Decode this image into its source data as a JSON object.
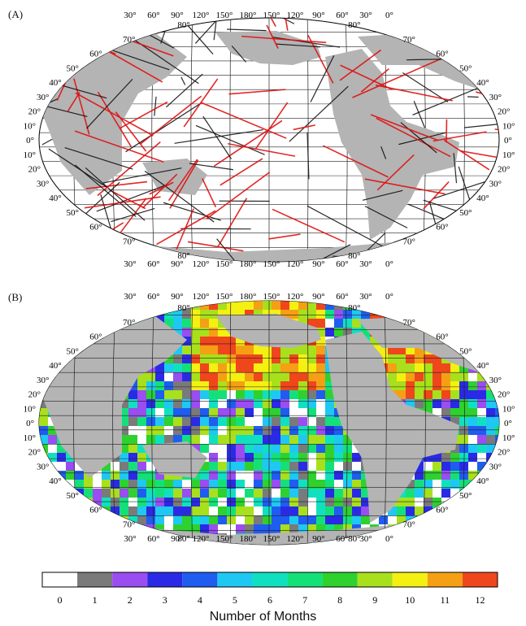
{
  "panel_a": {
    "label": "(A)"
  },
  "panel_b": {
    "label": "(B)"
  },
  "longitude_labels": [
    "30°",
    "60°",
    "90°",
    "120°",
    "150°",
    "180°",
    "150°",
    "120°",
    "90°",
    "60°",
    "30°",
    "0°"
  ],
  "latitude_labels_left": [
    "80°",
    "70°",
    "60°",
    "50°",
    "40°",
    "30°",
    "20°",
    "10°",
    "0°",
    "10°",
    "20°",
    "30°",
    "40°",
    "50°",
    "60°",
    "70°",
    "80°"
  ],
  "latitude_labels_right": [
    "80°",
    "70°",
    "60°",
    "50°",
    "40°",
    "30°",
    "20°",
    "10°",
    "0°",
    "10°",
    "20°",
    "30°",
    "40°",
    "50°",
    "60°",
    "70°",
    "80°"
  ],
  "colorbar": {
    "title": "Number of Months",
    "ticks": [
      "0",
      "1",
      "2",
      "3",
      "4",
      "5",
      "6",
      "7",
      "8",
      "9",
      "10",
      "11",
      "12"
    ],
    "colors": [
      "#ffffff",
      "#7a7a7a",
      "#9a4df0",
      "#2a2ae6",
      "#1f5cf0",
      "#1fc8f2",
      "#11e0c0",
      "#14e07a",
      "#2ed12e",
      "#a8e01c",
      "#f4f012",
      "#f5a014",
      "#f0461c"
    ]
  },
  "colors": {
    "land": "#b4b4b4",
    "track_red": "#e01010",
    "track_black": "#111111"
  }
}
